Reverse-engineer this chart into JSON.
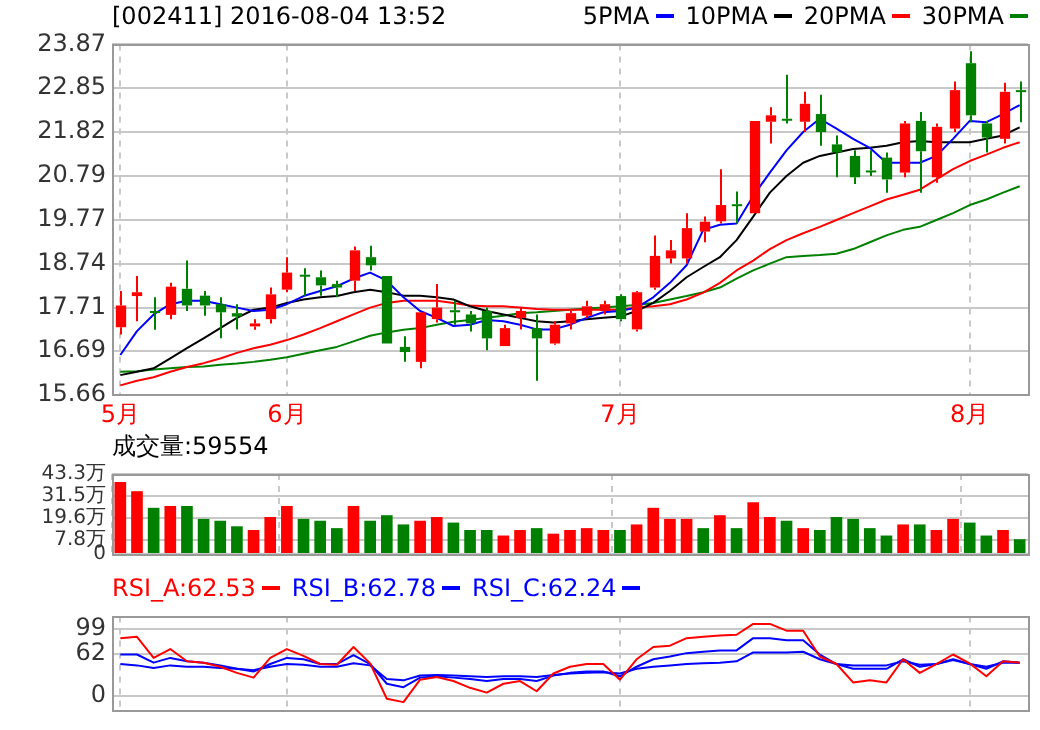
{
  "chart_data": [
    {
      "type": "candlestick",
      "title": "[002411] 2016-08-04 13:52",
      "categories": [
        "5月",
        null,
        null,
        null,
        null,
        null,
        null,
        null,
        null,
        null,
        "6月",
        null,
        null,
        null,
        null,
        null,
        null,
        null,
        null,
        null,
        null,
        null,
        null,
        null,
        null,
        null,
        null,
        null,
        null,
        null,
        "7月",
        null,
        null,
        null,
        null,
        null,
        null,
        null,
        null,
        null,
        null,
        null,
        null,
        null,
        null,
        null,
        null,
        null,
        null,
        null,
        null,
        "8月",
        null,
        null,
        null
      ],
      "ohlc": [
        [
          17.25,
          18.1,
          17.08,
          17.76
        ],
        [
          17.98,
          18.45,
          17.39,
          18.07
        ],
        [
          17.63,
          17.95,
          17.19,
          17.6
        ],
        [
          17.54,
          18.29,
          17.44,
          18.2
        ],
        [
          18.15,
          18.81,
          17.63,
          17.76
        ],
        [
          17.99,
          18.1,
          17.52,
          17.76
        ],
        [
          17.79,
          17.95,
          16.99,
          17.6
        ],
        [
          17.58,
          17.79,
          17.2,
          17.5
        ],
        [
          17.27,
          17.44,
          17.19,
          17.34
        ],
        [
          17.44,
          18.18,
          17.34,
          18.02
        ],
        [
          18.13,
          18.89,
          18.07,
          18.53
        ],
        [
          18.48,
          18.63,
          17.99,
          18.45
        ],
        [
          18.42,
          18.58,
          17.99,
          18.23
        ],
        [
          18.26,
          18.34,
          17.95,
          18.18
        ],
        [
          18.34,
          19.14,
          18.1,
          19.05
        ],
        [
          18.89,
          19.16,
          18.58,
          18.7
        ],
        [
          18.45,
          18.45,
          16.87,
          16.87
        ],
        [
          16.79,
          17.04,
          16.44,
          16.67
        ],
        [
          16.44,
          17.6,
          16.29,
          17.6
        ],
        [
          17.44,
          18.26,
          17.36,
          17.71
        ],
        [
          17.65,
          17.87,
          17.31,
          17.6
        ],
        [
          17.55,
          17.63,
          17.15,
          17.34
        ],
        [
          17.63,
          17.71,
          16.71,
          16.99
        ],
        [
          16.81,
          17.31,
          16.81,
          17.23
        ],
        [
          17.47,
          17.71,
          17.2,
          17.63
        ],
        [
          17.23,
          17.55,
          16.0,
          16.99
        ],
        [
          16.87,
          17.39,
          16.84,
          17.31
        ],
        [
          17.34,
          17.63,
          17.2,
          17.58
        ],
        [
          17.52,
          17.87,
          17.47,
          17.74
        ],
        [
          17.63,
          17.87,
          17.55,
          17.79
        ],
        [
          17.98,
          18.02,
          17.39,
          17.44
        ],
        [
          17.2,
          18.1,
          17.15,
          18.07
        ],
        [
          18.18,
          19.4,
          18.13,
          18.92
        ],
        [
          18.86,
          19.29,
          18.74,
          19.05
        ],
        [
          18.86,
          19.92,
          18.74,
          19.57
        ],
        [
          19.49,
          19.84,
          19.24,
          19.72
        ],
        [
          19.73,
          20.95,
          19.68,
          20.11
        ],
        [
          20.13,
          20.43,
          19.68,
          20.11
        ],
        [
          19.92,
          22.08,
          19.92,
          22.08
        ],
        [
          22.06,
          22.4,
          21.55,
          22.21
        ],
        [
          22.13,
          23.16,
          22.02,
          22.1
        ],
        [
          22.06,
          22.76,
          21.82,
          22.48
        ],
        [
          22.24,
          22.69,
          21.5,
          21.82
        ],
        [
          21.53,
          21.74,
          20.76,
          21.34
        ],
        [
          21.26,
          21.39,
          20.6,
          20.76
        ],
        [
          20.92,
          21.39,
          20.79,
          20.9
        ],
        [
          21.22,
          21.34,
          20.4,
          20.71
        ],
        [
          20.87,
          22.08,
          20.76,
          22.02
        ],
        [
          22.08,
          22.29,
          20.4,
          21.37
        ],
        [
          20.76,
          22.02,
          20.63,
          21.94
        ],
        [
          21.9,
          23.0,
          21.82,
          22.8
        ],
        [
          23.43,
          23.71,
          22.05,
          22.21
        ],
        [
          22.02,
          22.08,
          21.34,
          21.69
        ],
        [
          21.66,
          22.97,
          21.55,
          22.76
        ],
        [
          22.8,
          23.0,
          22.05,
          22.77
        ]
      ],
      "colors": [
        "#ff0000",
        "#ff0000",
        "#008000",
        "#ff0000",
        "#008000",
        "#008000",
        "#008000",
        "#008000",
        "#ff0000",
        "#ff0000",
        "#ff0000",
        "#008000",
        "#008000",
        "#008000",
        "#ff0000",
        "#008000",
        "#008000",
        "#008000",
        "#ff0000",
        "#ff0000",
        "#008000",
        "#008000",
        "#008000",
        "#ff0000",
        "#ff0000",
        "#008000",
        "#ff0000",
        "#ff0000",
        "#ff0000",
        "#ff0000",
        "#008000",
        "#ff0000",
        "#ff0000",
        "#ff0000",
        "#ff0000",
        "#ff0000",
        "#ff0000",
        "#008000",
        "#ff0000",
        "#ff0000",
        "#008000",
        "#ff0000",
        "#008000",
        "#008000",
        "#008000",
        "#008000",
        "#008000",
        "#ff0000",
        "#008000",
        "#ff0000",
        "#ff0000",
        "#008000",
        "#008000",
        "#ff0000",
        "#008000"
      ],
      "series": [
        {
          "type": "line",
          "name": "5PMA",
          "color": "#0000ff",
          "values": [
            16.6,
            17.16,
            17.55,
            17.79,
            17.87,
            17.87,
            17.79,
            17.71,
            17.63,
            17.66,
            17.79,
            17.98,
            18.1,
            18.21,
            18.39,
            18.53,
            18.34,
            17.95,
            17.63,
            17.47,
            17.28,
            17.31,
            17.42,
            17.39,
            17.31,
            17.2,
            17.2,
            17.31,
            17.47,
            17.6,
            17.63,
            17.71,
            17.95,
            18.29,
            18.7,
            19.53,
            19.65,
            19.68,
            20.32,
            20.87,
            21.39,
            21.82,
            22.13,
            21.9,
            21.66,
            21.45,
            21.1,
            21.1,
            21.1,
            21.26,
            21.66,
            22.08,
            22.05,
            22.24,
            22.45
          ]
        },
        {
          "type": "line",
          "name": "10PMA",
          "color": "#000000",
          "values": [
            16.13,
            16.21,
            16.29,
            16.52,
            16.76,
            16.99,
            17.23,
            17.47,
            17.66,
            17.71,
            17.82,
            17.9,
            17.95,
            17.98,
            18.07,
            18.13,
            18.07,
            17.99,
            17.99,
            17.95,
            17.9,
            17.74,
            17.63,
            17.55,
            17.47,
            17.39,
            17.36,
            17.39,
            17.44,
            17.47,
            17.5,
            17.63,
            17.82,
            18.1,
            18.42,
            18.66,
            18.89,
            19.29,
            19.84,
            20.4,
            20.79,
            21.1,
            21.26,
            21.34,
            21.42,
            21.45,
            21.5,
            21.58,
            21.61,
            21.58,
            21.58,
            21.58,
            21.66,
            21.74,
            21.93
          ]
        },
        {
          "type": "line",
          "name": "20PMA",
          "color": "#ff0000",
          "values": [
            15.89,
            16.0,
            16.08,
            16.21,
            16.32,
            16.41,
            16.52,
            16.65,
            16.76,
            16.84,
            16.95,
            17.08,
            17.23,
            17.39,
            17.55,
            17.71,
            17.82,
            17.87,
            17.87,
            17.87,
            17.82,
            17.76,
            17.74,
            17.74,
            17.71,
            17.68,
            17.66,
            17.66,
            17.66,
            17.66,
            17.66,
            17.71,
            17.74,
            17.79,
            17.9,
            18.06,
            18.29,
            18.58,
            18.81,
            19.08,
            19.29,
            19.45,
            19.6,
            19.76,
            19.92,
            20.08,
            20.24,
            20.35,
            20.47,
            20.71,
            20.95,
            21.14,
            21.29,
            21.45,
            21.58
          ]
        },
        {
          "type": "line",
          "name": "30PMA",
          "color": "#008000",
          "values": [
            16.21,
            16.22,
            16.26,
            16.29,
            16.32,
            16.33,
            16.37,
            16.4,
            16.44,
            16.49,
            16.55,
            16.63,
            16.71,
            16.79,
            16.92,
            17.05,
            17.13,
            17.19,
            17.23,
            17.31,
            17.38,
            17.42,
            17.47,
            17.52,
            17.58,
            17.6,
            17.63,
            17.66,
            17.69,
            17.71,
            17.74,
            17.77,
            17.82,
            17.9,
            17.98,
            18.07,
            18.18,
            18.39,
            18.58,
            18.74,
            18.89,
            18.92,
            18.94,
            18.97,
            19.08,
            19.24,
            19.4,
            19.53,
            19.6,
            19.76,
            19.92,
            20.11,
            20.24,
            20.4,
            20.55
          ]
        }
      ],
      "ylim": [
        15.66,
        23.87
      ],
      "yticks": [
        15.66,
        16.69,
        17.71,
        18.74,
        19.77,
        20.79,
        21.82,
        22.85,
        23.87
      ],
      "grid": true,
      "legend": "top right",
      "marker": "none"
    },
    {
      "type": "bar",
      "title": "成交量:59554",
      "values": [
        39,
        34,
        25,
        26,
        26,
        19,
        18,
        15,
        13,
        20,
        26,
        19,
        18,
        14,
        26,
        18,
        21,
        16,
        18,
        20,
        17,
        13,
        13,
        10,
        13,
        14,
        11,
        13,
        14,
        13,
        13,
        16,
        25,
        19,
        19,
        14,
        21,
        14,
        28,
        20,
        18,
        14,
        13,
        20,
        19,
        14,
        10,
        16,
        16,
        13,
        19,
        17,
        10,
        13,
        8
      ],
      "colors": [
        "#ff0000",
        "#ff0000",
        "#008000",
        "#ff0000",
        "#008000",
        "#008000",
        "#008000",
        "#008000",
        "#ff0000",
        "#ff0000",
        "#ff0000",
        "#008000",
        "#008000",
        "#008000",
        "#ff0000",
        "#008000",
        "#008000",
        "#008000",
        "#ff0000",
        "#ff0000",
        "#008000",
        "#008000",
        "#008000",
        "#ff0000",
        "#ff0000",
        "#008000",
        "#ff0000",
        "#ff0000",
        "#ff0000",
        "#ff0000",
        "#008000",
        "#ff0000",
        "#ff0000",
        "#ff0000",
        "#ff0000",
        "#008000",
        "#ff0000",
        "#008000",
        "#ff0000",
        "#ff0000",
        "#008000",
        "#ff0000",
        "#008000",
        "#008000",
        "#008000",
        "#008000",
        "#008000",
        "#ff0000",
        "#008000",
        "#ff0000",
        "#ff0000",
        "#008000",
        "#008000",
        "#ff0000",
        "#008000"
      ],
      "ylim": [
        0,
        43.3
      ],
      "yticks": [
        0,
        {
          "value": 7.8,
          "label": "7.8万"
        },
        {
          "value": 19.6,
          "label": "19.6万"
        },
        {
          "value": 31.5,
          "label": "31.5万"
        },
        {
          "value": 43.3,
          "label": "43.3万"
        }
      ],
      "grid": true,
      "tick_labels": "y"
    },
    {
      "type": "line",
      "series": [
        {
          "name": "RSI_A:62.53",
          "color": "#ff0000",
          "values": [
            85,
            87,
            56,
            69,
            51,
            49,
            43,
            34,
            27,
            56,
            69,
            59,
            47,
            46,
            72,
            48,
            -4,
            -9,
            24,
            28,
            22,
            12,
            5,
            18,
            22,
            7,
            33,
            43,
            47,
            47,
            24,
            54,
            72,
            74,
            85,
            87,
            89,
            90,
            106,
            106,
            96,
            96,
            58,
            47,
            20,
            23,
            20,
            54,
            34,
            47,
            61,
            48,
            29,
            51,
            49
          ]
        },
        {
          "name": "RSI_B:62.78",
          "color": "#0000ff",
          "values": [
            61,
            61,
            49,
            56,
            51,
            49,
            45,
            40,
            36,
            47,
            56,
            54,
            47,
            47,
            60,
            47,
            18,
            13,
            27,
            29,
            27,
            25,
            22,
            25,
            25,
            22,
            30,
            34,
            36,
            36,
            29,
            43,
            54,
            58,
            63,
            65,
            67,
            67,
            85,
            85,
            82,
            82,
            61,
            47,
            40,
            40,
            40,
            54,
            43,
            47,
            54,
            47,
            40,
            51,
            49
          ]
        },
        {
          "name": "RSI_C:62.24",
          "color": "#0000ff",
          "values": [
            47,
            45,
            41,
            45,
            43,
            43,
            41,
            40,
            38,
            43,
            47,
            46,
            43,
            43,
            48,
            45,
            25,
            23,
            30,
            31,
            30,
            29,
            28,
            29,
            29,
            28,
            31,
            33,
            34,
            35,
            33,
            40,
            43,
            45,
            47,
            48,
            49,
            51,
            64,
            64,
            64,
            65,
            54,
            47,
            45,
            45,
            45,
            51,
            46,
            47,
            53,
            47,
            43,
            49,
            49
          ]
        }
      ],
      "ylim": [
        -20,
        117
      ],
      "yticks": [
        0,
        62,
        99
      ],
      "grid": true,
      "legend": "top left",
      "tick_labels": "y",
      "marker": "none"
    }
  ]
}
